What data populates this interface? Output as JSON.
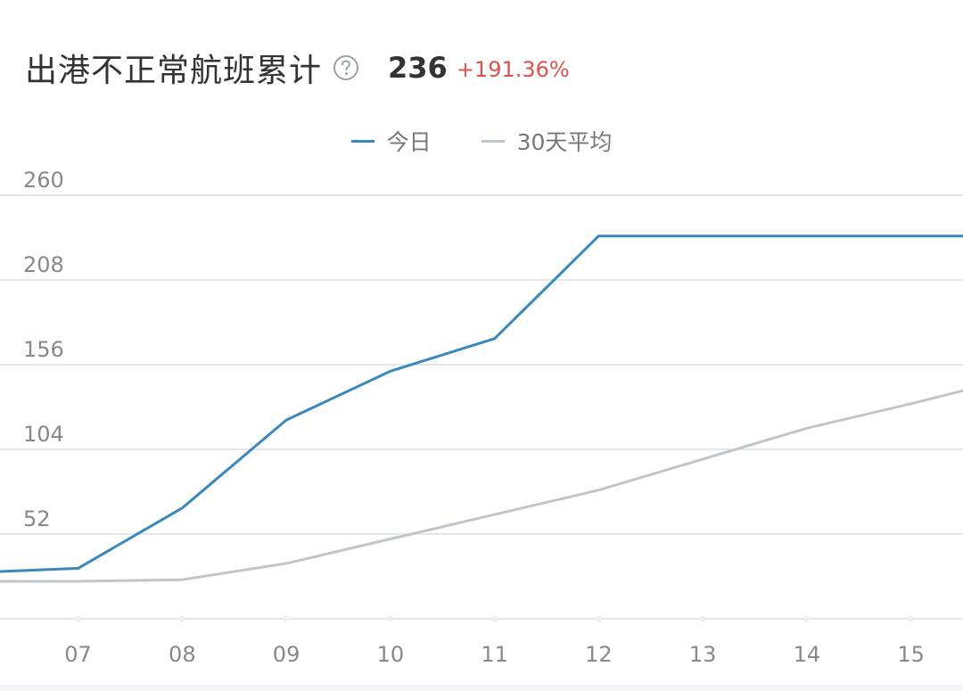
{
  "header": {
    "title": "出港不正常航班累计",
    "total": "236",
    "change": "+191.36%",
    "help_icon": "question-circle-icon"
  },
  "colors": {
    "today": "#3a87c0",
    "average": "#c0c5ca",
    "grid": "#e4e6e9",
    "change": "#d9534f"
  },
  "chart_data": {
    "type": "line",
    "legend": "top-center",
    "grid": true,
    "ylim": [
      0,
      260
    ],
    "yticks": [
      "260",
      "208",
      "156",
      "104",
      "52"
    ],
    "xlim": [
      6.25,
      15.5
    ],
    "categories": [
      "07",
      "08",
      "09",
      "10",
      "11",
      "12",
      "13",
      "14",
      "15"
    ],
    "series": [
      {
        "name": "今日",
        "color": "#3a87c0",
        "x": [
          6.25,
          7,
          8,
          9,
          10,
          11,
          12,
          13,
          14,
          15,
          15.5
        ],
        "y": [
          29,
          31,
          68,
          122,
          152,
          172,
          235,
          235,
          235,
          235,
          235
        ]
      },
      {
        "name": "30天平均",
        "color": "#c0c5ca",
        "x": [
          6.25,
          7,
          8,
          9,
          10,
          11,
          12,
          13,
          14,
          15,
          15.5
        ],
        "y": [
          23,
          23,
          24,
          34,
          49,
          64,
          79,
          98,
          117,
          132,
          140
        ]
      }
    ]
  }
}
